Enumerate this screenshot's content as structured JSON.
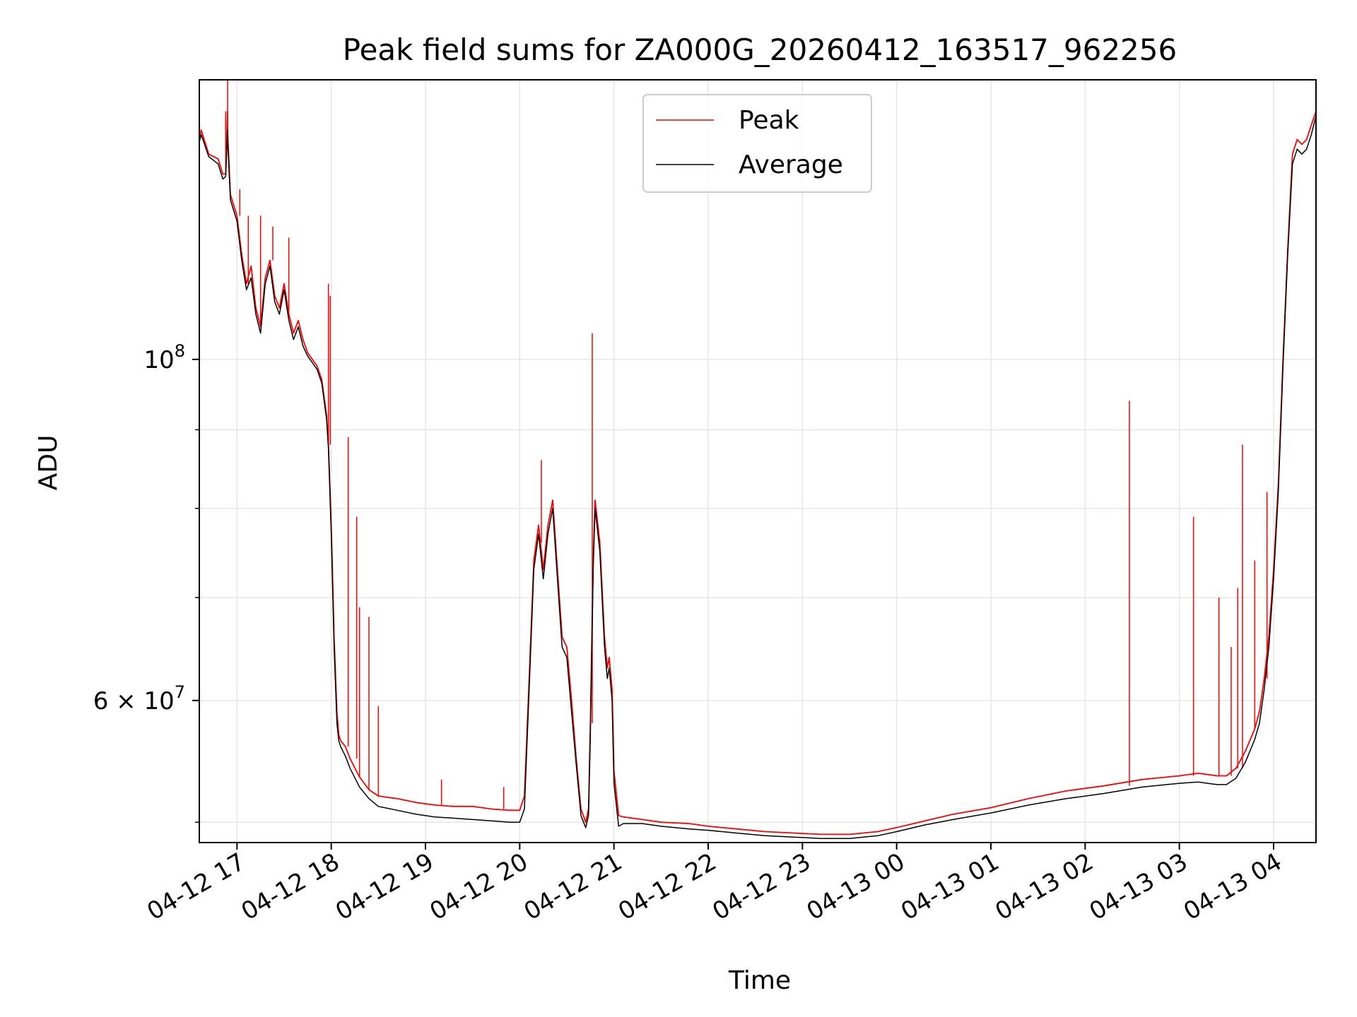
{
  "chart_data": {
    "type": "line",
    "title": "Peak field sums for ZA000G_20260412_163517_962256",
    "xlabel": "Time",
    "ylabel": "ADU",
    "yscale": "log",
    "xlim_hours": [
      16.6,
      28.45
    ],
    "ylim": [
      48500000,
      152000000
    ],
    "grid": true,
    "legend_position": "upper center",
    "x_ticks": [
      {
        "hour": 17,
        "label": "04-12 17"
      },
      {
        "hour": 18,
        "label": "04-12 18"
      },
      {
        "hour": 19,
        "label": "04-12 19"
      },
      {
        "hour": 20,
        "label": "04-12 20"
      },
      {
        "hour": 21,
        "label": "04-12 21"
      },
      {
        "hour": 22,
        "label": "04-12 22"
      },
      {
        "hour": 23,
        "label": "04-12 23"
      },
      {
        "hour": 24,
        "label": "04-13 00"
      },
      {
        "hour": 25,
        "label": "04-13 01"
      },
      {
        "hour": 26,
        "label": "04-13 02"
      },
      {
        "hour": 27,
        "label": "04-13 03"
      },
      {
        "hour": 28,
        "label": "04-13 04"
      }
    ],
    "y_major_ticks": [
      {
        "value": 100000000,
        "base": "10",
        "exp": "8"
      },
      {
        "value": 60000000,
        "base": "6 × 10",
        "exp": "7"
      }
    ],
    "y_minor_ticks": [
      50000000,
      70000000,
      80000000,
      90000000
    ],
    "series": [
      {
        "name": "Peak",
        "color": "#ff0000",
        "x_hours": [
          16.6,
          16.62,
          16.7,
          16.8,
          16.85,
          16.88,
          16.9,
          16.9,
          16.93,
          17.0,
          17.05,
          17.1,
          17.15,
          17.2,
          17.25,
          17.3,
          17.35,
          17.4,
          17.45,
          17.5,
          17.55,
          17.6,
          17.65,
          17.7,
          17.75,
          17.8,
          17.85,
          17.9,
          17.95,
          17.97,
          18.0,
          18.03,
          18.06,
          18.08,
          18.1,
          18.15,
          18.2,
          18.3,
          18.4,
          18.5,
          18.7,
          18.9,
          19.1,
          19.3,
          19.5,
          19.7,
          19.9,
          20.0,
          20.05,
          20.1,
          20.15,
          20.2,
          20.22,
          20.25,
          20.3,
          20.35,
          20.4,
          20.45,
          20.5,
          20.55,
          20.6,
          20.65,
          20.7,
          20.73,
          20.75,
          20.78,
          20.8,
          20.85,
          20.9,
          20.93,
          20.95,
          20.98,
          21.0,
          21.05,
          21.1,
          21.3,
          21.5,
          21.8,
          22.0,
          22.3,
          22.6,
          22.9,
          23.2,
          23.5,
          23.8,
          24.0,
          24.3,
          24.6,
          25.0,
          25.4,
          25.8,
          26.2,
          26.6,
          27.0,
          27.2,
          27.3,
          27.4,
          27.5,
          27.6,
          27.7,
          27.8,
          27.85,
          27.9,
          27.95,
          28.0,
          28.05,
          28.1,
          28.15,
          28.2,
          28.25,
          28.3,
          28.35,
          28.4,
          28.45
        ],
        "values": [
          139000000,
          141000000,
          136000000,
          135000000,
          132000000,
          132000000,
          145000000,
          141000000,
          128000000,
          124000000,
          117000000,
          112000000,
          115000000,
          108000000,
          105000000,
          113000000,
          116000000,
          110000000,
          108000000,
          112000000,
          107000000,
          104000000,
          106000000,
          103000000,
          101000000,
          100000000,
          99000000,
          97000000,
          92000000,
          88000000,
          78000000,
          66000000,
          59000000,
          57000000,
          56500000,
          56000000,
          55000000,
          53500000,
          52500000,
          52000000,
          51800000,
          51500000,
          51300000,
          51200000,
          51200000,
          51000000,
          50900000,
          50900000,
          52000000,
          62000000,
          74000000,
          78000000,
          76000000,
          73000000,
          78000000,
          81000000,
          73000000,
          66000000,
          65000000,
          60000000,
          55000000,
          51000000,
          50000000,
          51000000,
          58000000,
          74000000,
          81000000,
          76000000,
          66000000,
          63000000,
          64000000,
          61000000,
          54000000,
          50500000,
          50400000,
          50200000,
          50000000,
          49900000,
          49700000,
          49500000,
          49300000,
          49200000,
          49100000,
          49100000,
          49300000,
          49600000,
          50100000,
          50600000,
          51100000,
          51800000,
          52400000,
          52800000,
          53300000,
          53600000,
          53800000,
          53700000,
          53600000,
          53600000,
          54200000,
          55600000,
          57500000,
          59000000,
          62000000,
          66000000,
          73000000,
          83000000,
          100000000,
          118000000,
          136000000,
          139000000,
          138000000,
          139000000,
          142000000,
          145000000
        ]
      },
      {
        "name": "Average",
        "color": "#000000",
        "x_hours": [
          16.6,
          16.62,
          16.7,
          16.8,
          16.85,
          16.88,
          16.9,
          16.9,
          16.93,
          17.0,
          17.05,
          17.1,
          17.15,
          17.2,
          17.25,
          17.3,
          17.35,
          17.4,
          17.45,
          17.5,
          17.55,
          17.6,
          17.65,
          17.7,
          17.75,
          17.8,
          17.85,
          17.9,
          17.95,
          17.97,
          18.0,
          18.03,
          18.06,
          18.08,
          18.1,
          18.15,
          18.2,
          18.3,
          18.4,
          18.5,
          18.7,
          18.9,
          19.1,
          19.3,
          19.5,
          19.7,
          19.9,
          20.0,
          20.05,
          20.1,
          20.15,
          20.2,
          20.22,
          20.25,
          20.3,
          20.35,
          20.4,
          20.45,
          20.5,
          20.55,
          20.6,
          20.65,
          20.7,
          20.73,
          20.75,
          20.78,
          20.8,
          20.85,
          20.9,
          20.93,
          20.95,
          20.98,
          21.0,
          21.05,
          21.1,
          21.3,
          21.5,
          21.8,
          22.0,
          22.3,
          22.6,
          22.9,
          23.2,
          23.5,
          23.8,
          24.0,
          24.3,
          24.6,
          25.0,
          25.4,
          25.8,
          26.2,
          26.6,
          27.0,
          27.2,
          27.3,
          27.4,
          27.5,
          27.6,
          27.7,
          27.8,
          27.85,
          27.9,
          27.95,
          28.0,
          28.05,
          28.1,
          28.15,
          28.2,
          28.25,
          28.3,
          28.35,
          28.4,
          28.45
        ],
        "values": [
          138500000,
          140000000,
          135500000,
          134000000,
          131000000,
          131500000,
          141000000,
          139000000,
          127000000,
          123000000,
          116000000,
          111000000,
          113000000,
          107000000,
          104000000,
          112000000,
          115000000,
          109000000,
          107000000,
          111000000,
          106000000,
          103000000,
          105000000,
          102000000,
          100500000,
          99500000,
          98500000,
          96500000,
          91500000,
          87500000,
          77000000,
          65000000,
          58000000,
          56500000,
          56000000,
          55200000,
          54200000,
          52700000,
          51800000,
          51200000,
          50900000,
          50600000,
          50400000,
          50300000,
          50200000,
          50100000,
          50000000,
          50000000,
          51000000,
          61000000,
          73000000,
          77000000,
          75000000,
          72000000,
          77000000,
          80000000,
          72000000,
          65000000,
          64000000,
          59000000,
          54500000,
          50500000,
          49600000,
          50500000,
          57000000,
          73000000,
          80000000,
          75000000,
          65000000,
          62000000,
          63000000,
          60000000,
          53000000,
          49700000,
          49900000,
          49900000,
          49700000,
          49500000,
          49400000,
          49200000,
          49000000,
          48900000,
          48800000,
          48800000,
          49000000,
          49300000,
          49800000,
          50200000,
          50700000,
          51300000,
          51800000,
          52200000,
          52700000,
          53000000,
          53100000,
          53000000,
          52900000,
          52900000,
          53400000,
          54700000,
          56600000,
          58000000,
          61000000,
          65000000,
          72000000,
          82000000,
          99000000,
          117000000,
          134000000,
          137000000,
          136000000,
          137000000,
          140000000,
          144000000
        ]
      }
    ],
    "peak_spikes": [
      {
        "hour": 16.9,
        "value": 152000000
      },
      {
        "hour": 16.88,
        "value": 145000000
      },
      {
        "hour": 17.03,
        "value": 129000000
      },
      {
        "hour": 17.12,
        "value": 124000000
      },
      {
        "hour": 17.25,
        "value": 124000000
      },
      {
        "hour": 17.38,
        "value": 122000000
      },
      {
        "hour": 17.55,
        "value": 120000000
      },
      {
        "hour": 17.97,
        "value": 112000000
      },
      {
        "hour": 17.99,
        "value": 110000000
      },
      {
        "hour": 18.18,
        "value": 89000000
      },
      {
        "hour": 18.27,
        "value": 79000000
      },
      {
        "hour": 18.3,
        "value": 69000000
      },
      {
        "hour": 18.4,
        "value": 68000000
      },
      {
        "hour": 18.5,
        "value": 59500000
      },
      {
        "hour": 19.17,
        "value": 53300000
      },
      {
        "hour": 19.83,
        "value": 52700000
      },
      {
        "hour": 20.23,
        "value": 86000000
      },
      {
        "hour": 20.77,
        "value": 104000000
      },
      {
        "hour": 26.47,
        "value": 94000000
      },
      {
        "hour": 27.15,
        "value": 79000000
      },
      {
        "hour": 27.42,
        "value": 70000000
      },
      {
        "hour": 27.55,
        "value": 65000000
      },
      {
        "hour": 27.62,
        "value": 71000000
      },
      {
        "hour": 27.67,
        "value": 88000000
      },
      {
        "hour": 27.8,
        "value": 74000000
      },
      {
        "hour": 27.93,
        "value": 82000000
      }
    ],
    "legend": [
      {
        "name": "Peak",
        "color": "#ff0000"
      },
      {
        "name": "Average",
        "color": "#000000"
      }
    ]
  }
}
